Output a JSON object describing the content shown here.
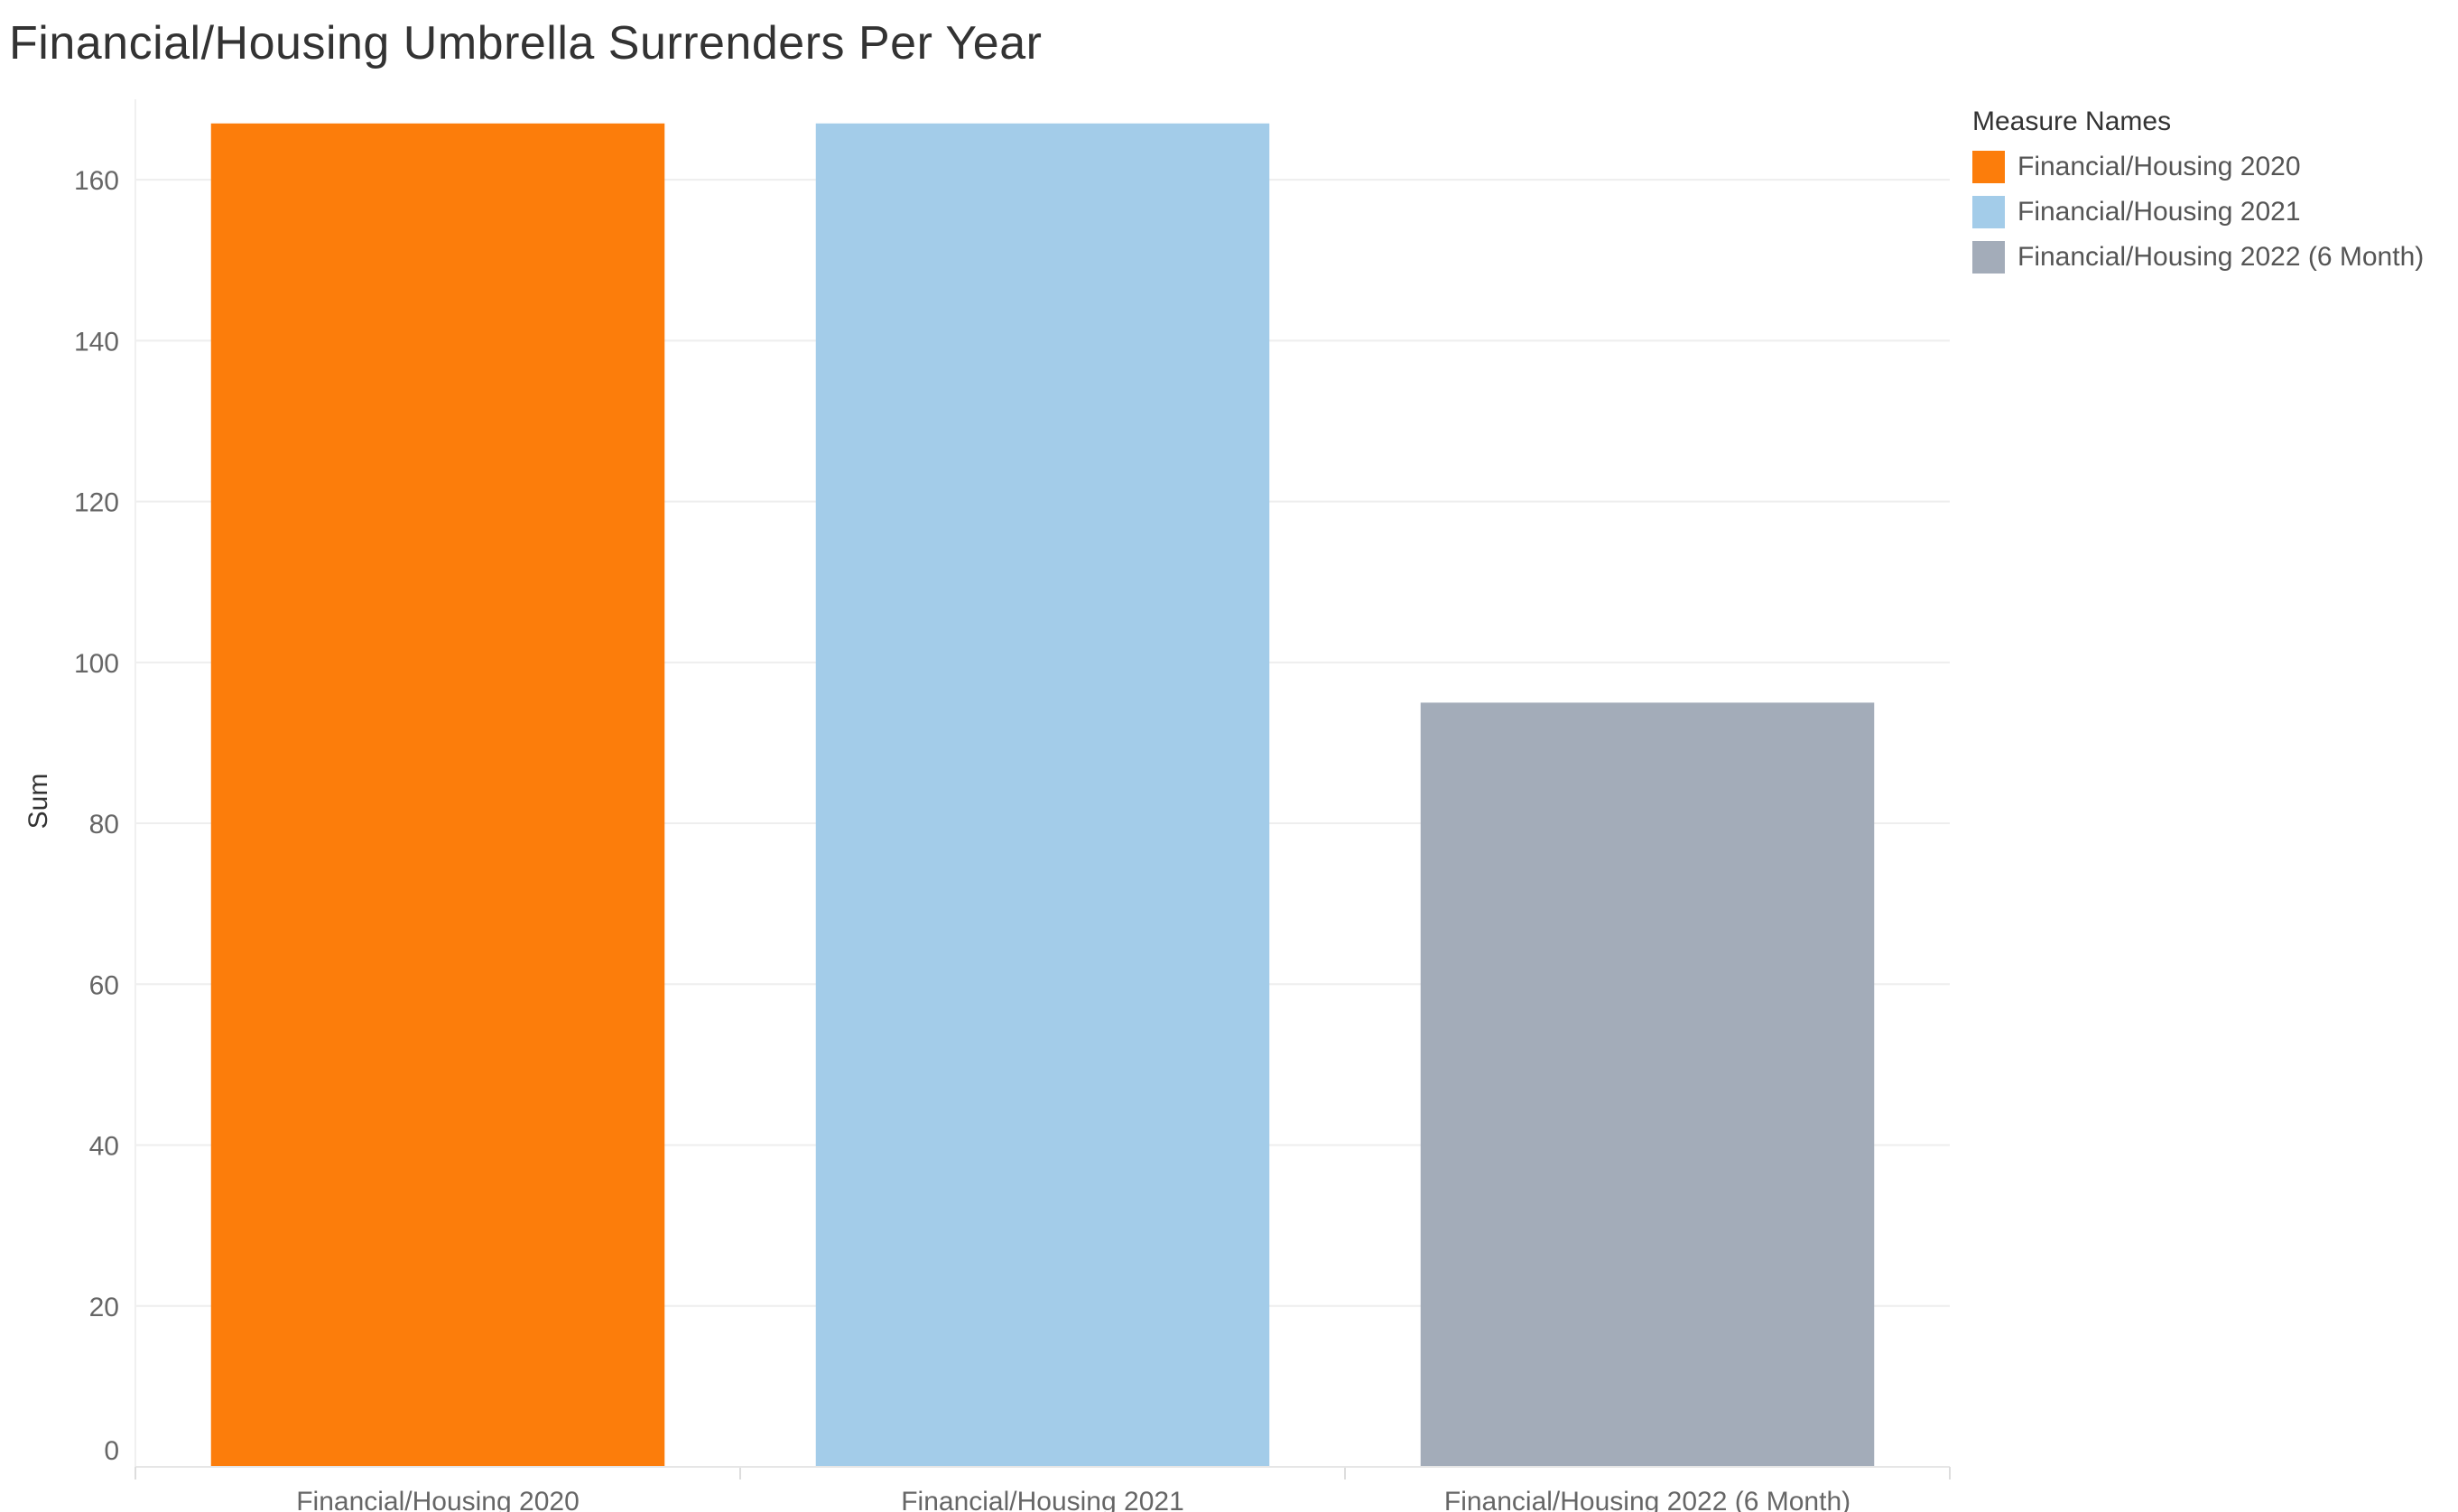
{
  "chart_data": {
    "type": "bar",
    "title": "Financial/Housing Umbrella Surrenders Per Year",
    "xlabel": "",
    "ylabel": "Sum",
    "categories": [
      "Financial/Housing 2020",
      "Financial/Housing 2021",
      "Financial/Housing 2022 (6 Month)"
    ],
    "values": [
      167,
      167,
      95
    ],
    "colors": [
      "#fc7d0b",
      "#a3cce9",
      "#a3acb9"
    ],
    "ylim": [
      0,
      170
    ],
    "yticks": [
      0,
      20,
      40,
      60,
      80,
      100,
      120,
      140,
      160
    ],
    "grid": true,
    "legend": {
      "title": "Measure Names",
      "placement": "right",
      "entries": [
        {
          "label": "Financial/Housing 2020",
          "color": "#fc7d0b"
        },
        {
          "label": "Financial/Housing 2021",
          "color": "#a3cce9"
        },
        {
          "label": "Financial/Housing 2022 (6 Month)",
          "color": "#a3acb9"
        }
      ]
    }
  }
}
